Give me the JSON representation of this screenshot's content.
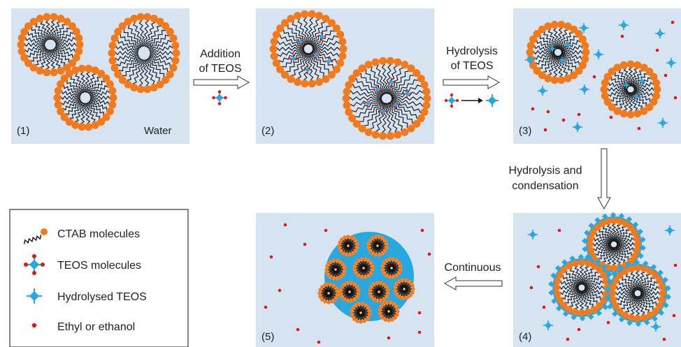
{
  "panels": [
    {
      "label": "(1)",
      "medium": "Water"
    },
    {
      "label": "(2)"
    },
    {
      "label": "(3)"
    },
    {
      "label": "(4)"
    },
    {
      "label": "(5)"
    }
  ],
  "steps": {
    "addition_line1": "Addition",
    "addition_line2": "of TEOS",
    "hydrolysis_line1": "Hydrolysis",
    "hydrolysis_line2": "of TEOS",
    "hydrocond_line1": "Hydrolysis and",
    "hydrocond_line2": "condensation",
    "continuous": "Continuous"
  },
  "legend": {
    "items": [
      {
        "label": "CTAB molecules",
        "icon": "ctab-molecule-icon"
      },
      {
        "label": "TEOS molecules",
        "icon": "teos-molecule-icon"
      },
      {
        "label": "Hydrolysed TEOS",
        "icon": "hydrolysed-teos-icon"
      },
      {
        "label": "Ethyl or ethanol",
        "icon": "ethanol-dot-icon"
      }
    ]
  },
  "colors": {
    "panel_bg": "#d6e4f2",
    "head": "#f07a1c",
    "tail": "#111111",
    "teos": "#29a8e0",
    "ethanol": "#e01818",
    "silica": "#29a8e0"
  }
}
